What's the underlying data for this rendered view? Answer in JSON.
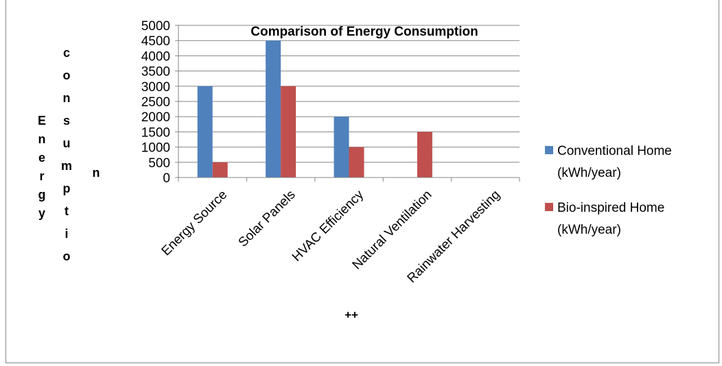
{
  "chart_data": {
    "type": "bar",
    "title": "Comparison of Energy Consumption",
    "ylabel_col1": "Energy",
    "ylabel_col2": "consumptio",
    "ylabel_col3": "n",
    "xlabel": "++",
    "categories": [
      "Energy Source",
      "Solar Panels",
      "HVAC Efficiency",
      "Natural Ventilation",
      "Rainwater Harvesting"
    ],
    "series": [
      {
        "name": "Conventional Home (kWh/year)",
        "legend_line1": "Conventional Home",
        "legend_line2": "(kWh/year)",
        "color": "#4f81bd",
        "values": [
          3000,
          4500,
          2000,
          0,
          0
        ]
      },
      {
        "name": "Bio-inspired Home (kWh/year)",
        "legend_line1": "Bio-inspired Home",
        "legend_line2": "(kWh/year)",
        "color": "#c0504d",
        "values": [
          500,
          3000,
          1000,
          1500,
          0
        ]
      }
    ],
    "ylim": [
      0,
      5000
    ],
    "yticks": [
      0,
      500,
      1000,
      1500,
      2000,
      2500,
      3000,
      3500,
      4000,
      4500,
      5000
    ],
    "grid": true,
    "legend": "right"
  }
}
